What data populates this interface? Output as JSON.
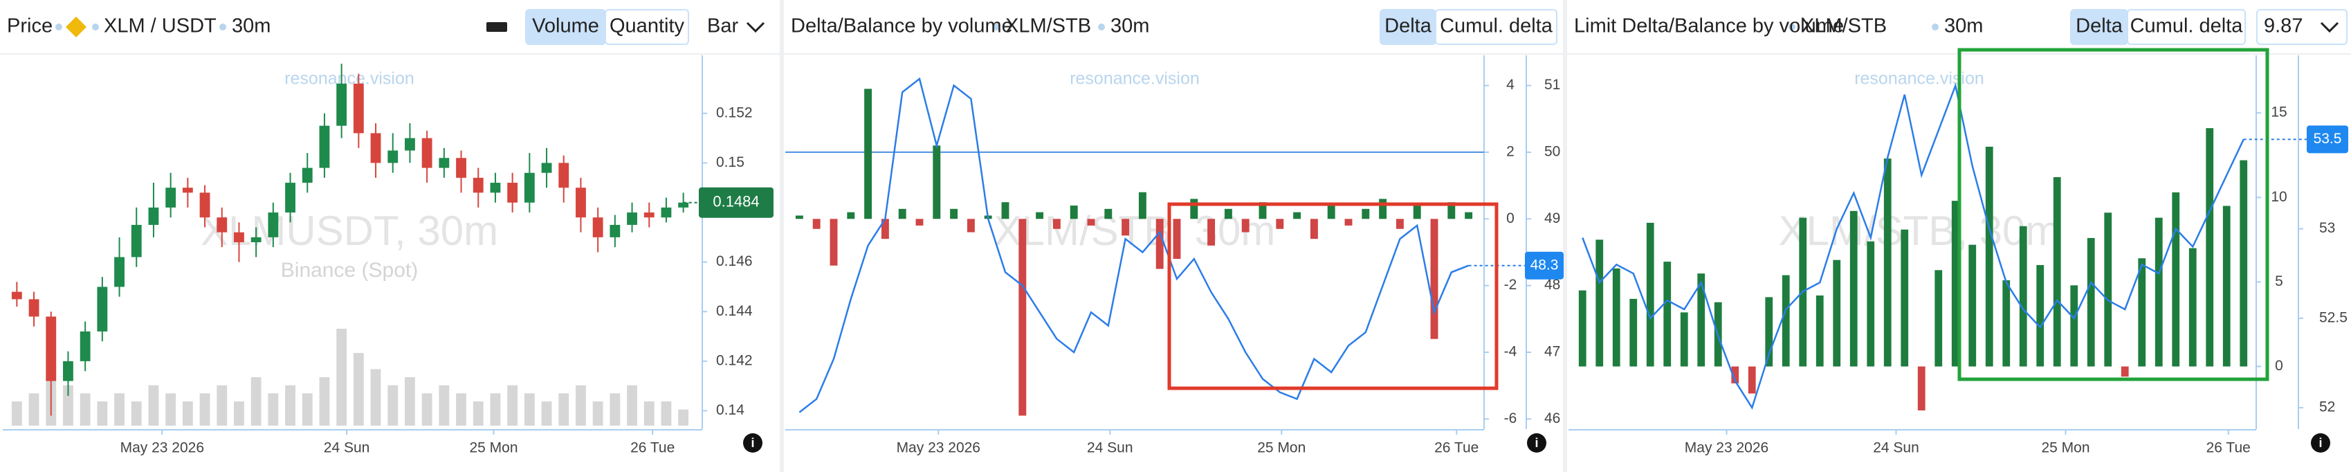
{
  "chart_data": [
    {
      "type": "candlestick",
      "title": "Price",
      "symbol": "XLM / USDT",
      "interval": "30m",
      "buttons": [
        {
          "label": "Volume",
          "active": true
        },
        {
          "label": "Quantity",
          "active": false
        }
      ],
      "dropdown": "Bar",
      "watermark": "resonance.vision",
      "watermark_symbol": "XLMUSDT, 30m",
      "watermark_exchange": "Binance (Spot)",
      "up_color": "#1e8a4c",
      "down_color": "#d6453d",
      "volume_color": "#d6d6d6",
      "last_color": "#1e7d46",
      "open": [
        0.1448,
        0.1445,
        0.1438,
        0.1412,
        0.142,
        0.1432,
        0.145,
        0.1462,
        0.1475,
        0.1482,
        0.149,
        0.1488,
        0.1478,
        0.1472,
        0.1468,
        0.147,
        0.148,
        0.1492,
        0.1498,
        0.1515,
        0.1532,
        0.1512,
        0.15,
        0.1505,
        0.151,
        0.1498,
        0.1502,
        0.1494,
        0.1488,
        0.1492,
        0.1484,
        0.1496,
        0.15,
        0.149,
        0.1478,
        0.147,
        0.1475,
        0.148,
        0.1478,
        0.1482
      ],
      "high": [
        0.1452,
        0.1448,
        0.144,
        0.1424,
        0.1436,
        0.1454,
        0.147,
        0.1482,
        0.1492,
        0.1496,
        0.1494,
        0.1491,
        0.1482,
        0.1476,
        0.1474,
        0.1484,
        0.1496,
        0.1504,
        0.152,
        0.154,
        0.1536,
        0.1516,
        0.1512,
        0.1516,
        0.1513,
        0.1506,
        0.1505,
        0.1498,
        0.1496,
        0.1496,
        0.1504,
        0.1506,
        0.1503,
        0.1494,
        0.1482,
        0.1479,
        0.1484,
        0.1484,
        0.1486,
        0.1488
      ],
      "low": [
        0.1442,
        0.1434,
        0.1398,
        0.1406,
        0.1416,
        0.1428,
        0.1446,
        0.1458,
        0.147,
        0.1478,
        0.1482,
        0.1474,
        0.1466,
        0.146,
        0.1462,
        0.1466,
        0.1476,
        0.1488,
        0.1494,
        0.151,
        0.1506,
        0.1494,
        0.1496,
        0.15,
        0.1492,
        0.1494,
        0.1488,
        0.1482,
        0.1484,
        0.148,
        0.148,
        0.149,
        0.1484,
        0.1472,
        0.1464,
        0.1466,
        0.1472,
        0.1474,
        0.1476,
        0.148
      ],
      "close": [
        0.1445,
        0.1438,
        0.1412,
        0.142,
        0.1432,
        0.145,
        0.1462,
        0.1475,
        0.1482,
        0.149,
        0.1488,
        0.1478,
        0.1472,
        0.1468,
        0.147,
        0.148,
        0.1492,
        0.1498,
        0.1515,
        0.1532,
        0.1512,
        0.15,
        0.1505,
        0.151,
        0.1498,
        0.1502,
        0.1494,
        0.1488,
        0.1492,
        0.1484,
        0.1496,
        0.15,
        0.149,
        0.1478,
        0.147,
        0.1475,
        0.148,
        0.1478,
        0.1482,
        0.1484
      ],
      "volume": [
        3,
        4,
        9,
        5,
        4,
        3,
        4,
        3,
        5,
        4,
        3,
        4,
        5,
        3,
        6,
        4,
        5,
        4,
        6,
        12,
        9,
        7,
        5,
        6,
        4,
        5,
        4,
        3,
        4,
        5,
        4,
        3,
        4,
        5,
        3,
        4,
        5,
        3,
        3,
        2
      ],
      "ylim": [
        0.1394,
        0.1542
      ],
      "yticks": [
        0.14,
        0.142,
        0.144,
        0.146,
        0.148,
        0.15,
        0.152
      ],
      "xticks": [
        {
          "value": 8.5,
          "label": "May 23 2026"
        },
        {
          "value": 19.3,
          "label": "24 Sun"
        },
        {
          "value": 27.9,
          "label": "25 Mon"
        },
        {
          "value": 37.2,
          "label": "26 Tue"
        }
      ]
    },
    {
      "type": "delta",
      "title": "Delta/Balance by volume",
      "symbol": "XLM/STB",
      "interval": "30m",
      "buttons": [
        {
          "label": "Delta",
          "active": true
        },
        {
          "label": "Cumul. delta",
          "active": false
        }
      ],
      "watermark": "resonance.vision",
      "watermark_symbol": "XLM/STB, 30m",
      "up_color": "#1e7d3e",
      "down_color": "#d04545",
      "line_color": "#2b7de9",
      "values": [
        0.1,
        -0.3,
        -1.4,
        0.2,
        3.9,
        -0.6,
        0.3,
        -0.2,
        2.2,
        0.3,
        -0.4,
        0.1,
        0.5,
        -5.9,
        0.2,
        -0.3,
        0.4,
        -0.2,
        0.3,
        -0.5,
        0.8,
        -1.5,
        -1.2,
        0.6,
        -0.8,
        0.3,
        -0.4,
        0.5,
        -0.3,
        0.2,
        -0.6,
        0.4,
        -0.2,
        0.3,
        0.6,
        -0.3,
        0.4,
        -3.6,
        0.5,
        0.2
      ],
      "line_values": [
        46.1,
        46.3,
        46.9,
        47.8,
        48.6,
        49.0,
        50.9,
        51.1,
        50.1,
        51.0,
        50.8,
        49.0,
        48.2,
        48.0,
        47.6,
        47.2,
        47.0,
        47.6,
        47.4,
        48.7,
        48.5,
        48.8,
        48.1,
        48.4,
        47.9,
        47.5,
        47.0,
        46.6,
        46.4,
        46.3,
        46.9,
        46.7,
        47.1,
        47.3,
        48.0,
        48.7,
        48.9,
        47.6,
        48.2,
        48.3
      ],
      "hline": 2,
      "ylim": [
        -6.2,
        4.8
      ],
      "yticks": [
        4,
        2,
        0,
        -2,
        -4,
        -6
      ],
      "y2lim": [
        45.9,
        51.4
      ],
      "y2ticks": [
        51,
        50,
        49,
        48,
        47,
        46
      ],
      "xticks": [
        {
          "value": 8.1,
          "label": "May 23 2026"
        },
        {
          "value": 18.1,
          "label": "24 Sun"
        },
        {
          "value": 28.1,
          "label": "25 Mon"
        },
        {
          "value": 38.3,
          "label": "26 Tue"
        }
      ]
    },
    {
      "type": "delta",
      "title": "Limit Delta/Balance by volume",
      "symbol": "XLM/STB",
      "interval": "30m",
      "buttons": [
        {
          "label": "Delta",
          "active": true
        },
        {
          "label": "Cumul. delta",
          "active": false
        }
      ],
      "dropdown": "9.87",
      "watermark": "resonance.vision",
      "watermark_symbol": "XLM/STB, 30m",
      "up_color": "#1e7d3e",
      "down_color": "#d04545",
      "line_color": "#2b7de9",
      "values": [
        4.5,
        7.5,
        5.8,
        4.0,
        8.5,
        6.2,
        3.2,
        5.5,
        3.8,
        -1.0,
        -1.6,
        4.1,
        5.4,
        8.8,
        4.2,
        6.3,
        9.2,
        7.4,
        12.3,
        8.1,
        -2.6,
        5.7,
        9.8,
        7.2,
        13.0,
        5.1,
        8.3,
        6.0,
        11.2,
        4.8,
        7.6,
        9.1,
        -0.6,
        6.4,
        8.8,
        10.3,
        7.0,
        14.1,
        9.5,
        12.2
      ],
      "line_values": [
        52.95,
        52.7,
        52.8,
        52.75,
        52.5,
        52.6,
        52.55,
        52.7,
        52.4,
        52.15,
        52.0,
        52.3,
        52.55,
        52.65,
        52.7,
        53.0,
        53.2,
        52.95,
        53.4,
        53.75,
        53.3,
        53.55,
        53.8,
        53.35,
        53.0,
        52.7,
        52.55,
        52.45,
        52.6,
        52.5,
        52.7,
        52.6,
        52.55,
        52.8,
        52.75,
        53.0,
        52.9,
        53.1,
        53.3,
        53.5
      ],
      "ylim": [
        -3.5,
        18.2
      ],
      "yticks": [
        15,
        10,
        5,
        0
      ],
      "y2lim": [
        51.9,
        53.95
      ],
      "y2ticks": [
        53,
        52.5,
        52
      ],
      "xticks": [
        {
          "value": 8.5,
          "label": "May 23 2026"
        },
        {
          "value": 18.5,
          "label": "24 Sun"
        },
        {
          "value": 28.5,
          "label": "25 Mon"
        },
        {
          "value": 38.1,
          "label": "26 Tue"
        }
      ]
    }
  ]
}
